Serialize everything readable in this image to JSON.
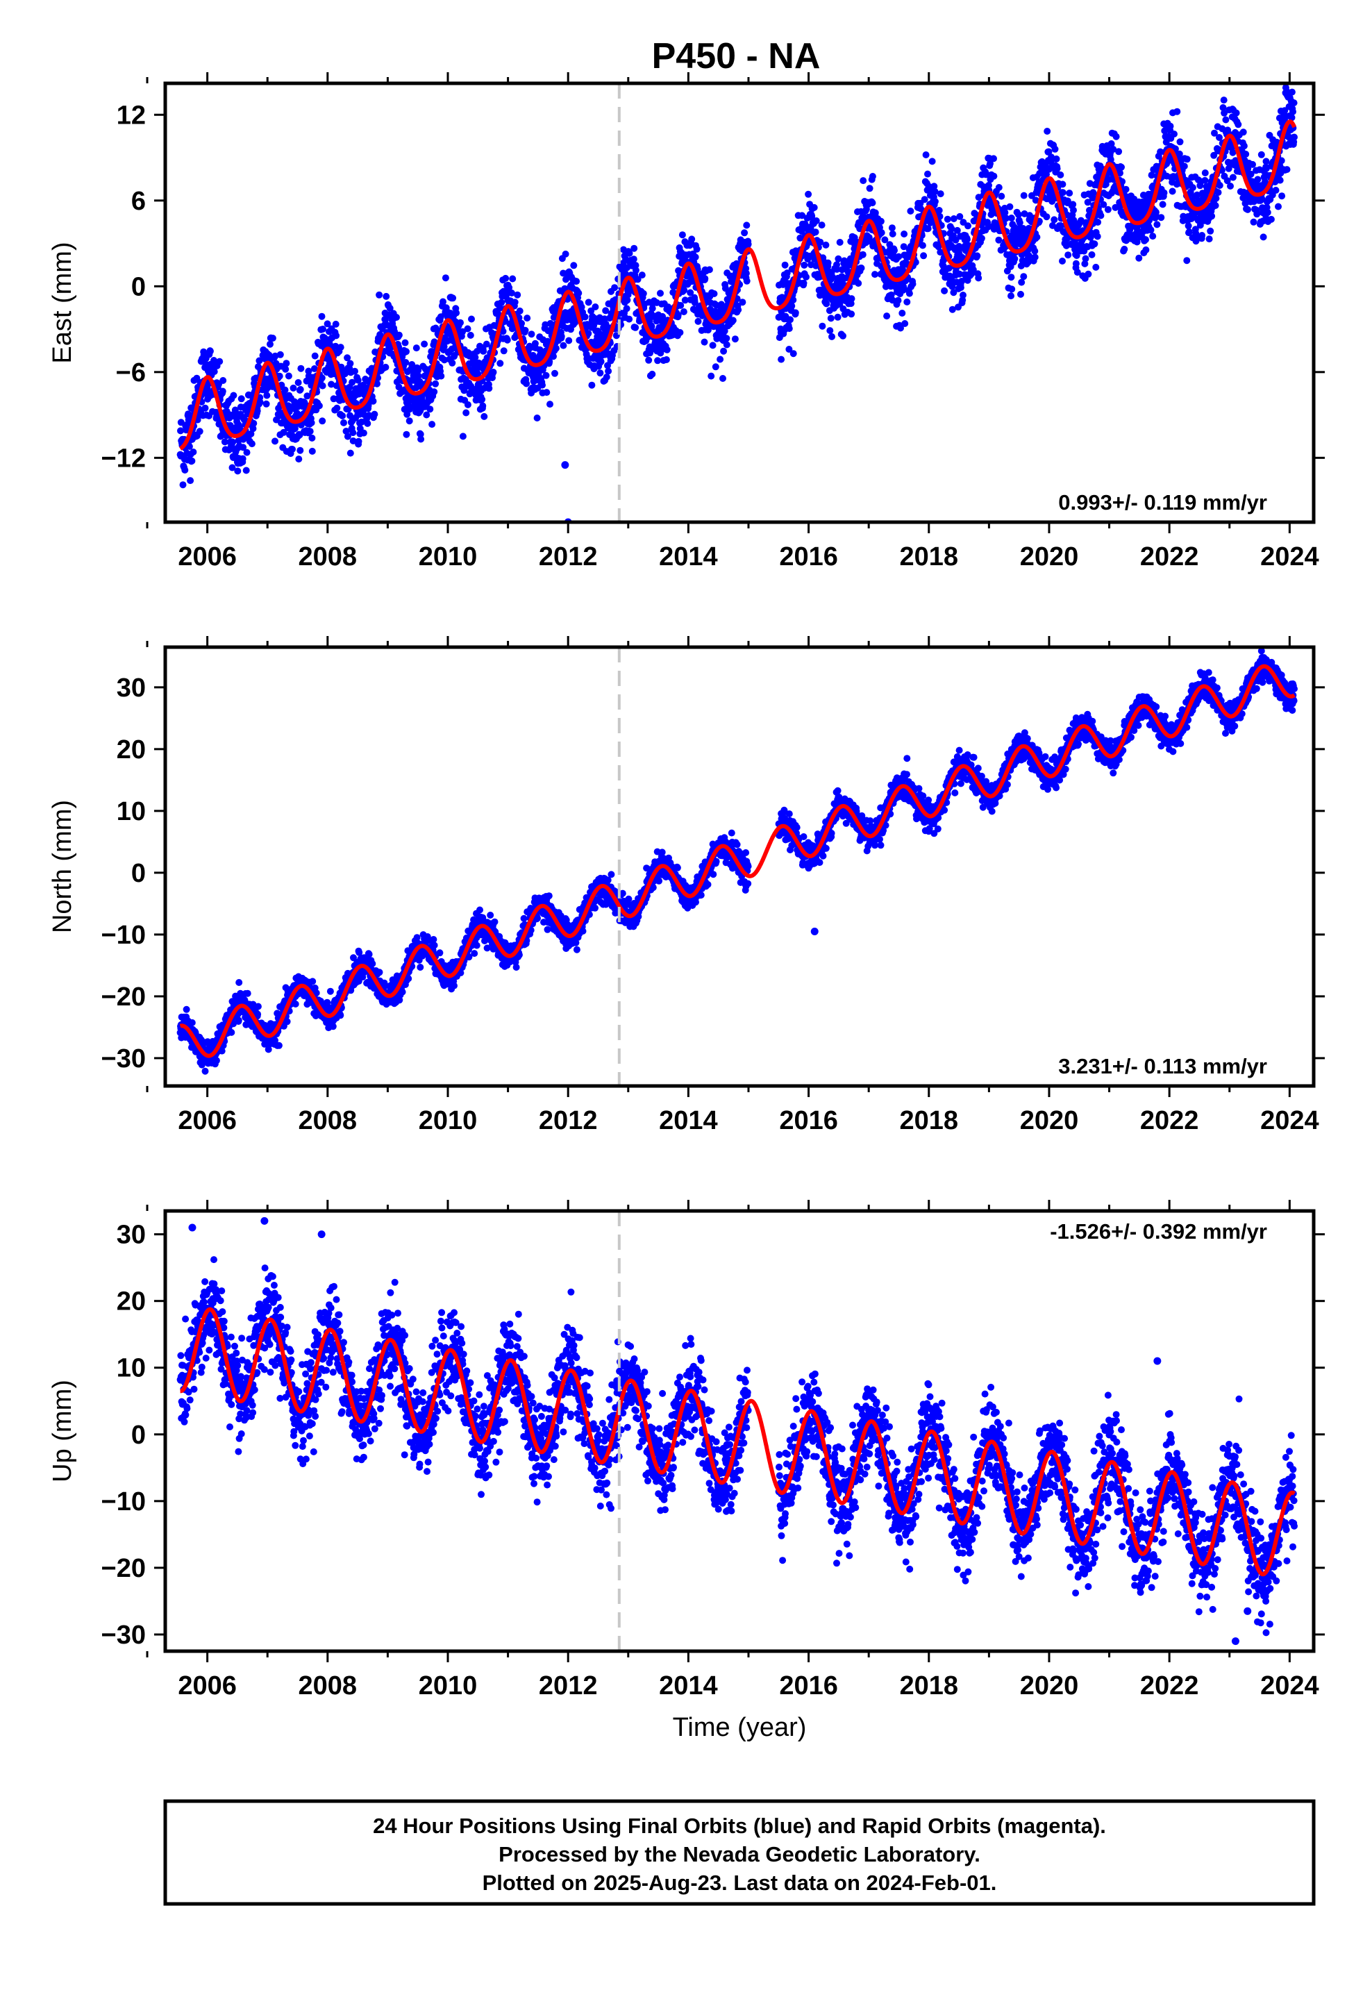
{
  "page": {
    "title": "P450 - NA",
    "footer_lines": [
      "24 Hour Positions Using Final Orbits (blue) and Rapid Orbits (magenta).",
      "Processed by the Nevada Geodetic Laboratory.",
      "Plotted on 2025-Aug-23. Last data on 2024-Feb-01."
    ],
    "colors": {
      "data_points": "#0000ff",
      "model_fit": "#ff0000",
      "event_line": "#c8c8c8",
      "frame": "#000000"
    }
  },
  "chart_data": [
    {
      "type": "scatter",
      "ylabel": "East (mm)",
      "xlabel": "",
      "xlim": [
        2005.3,
        2024.4
      ],
      "ylim": [
        -16.5,
        14.2
      ],
      "xticks": [
        2006,
        2008,
        2010,
        2012,
        2014,
        2016,
        2018,
        2020,
        2022,
        2024
      ],
      "yticks": [
        -12,
        -6,
        0,
        6,
        12
      ],
      "event_line_x": 2012.85,
      "rate_label": "0.993+/- 0.119 mm/yr",
      "data_range": [
        2005.55,
        2024.08
      ],
      "data_gap": [
        2015.0,
        2015.5
      ],
      "model": {
        "base": -9.5,
        "rate": 0.993,
        "annual_amp": 2.3,
        "annual_phase": 0.0,
        "semiannual_amp": 0.4,
        "noise_sd": 1.3
      },
      "outliers": [
        [
          2011.95,
          -12.5
        ],
        [
          2012.0,
          -16.5
        ]
      ],
      "grid": false
    },
    {
      "type": "scatter",
      "ylabel": "North (mm)",
      "xlabel": "",
      "xlim": [
        2005.3,
        2024.4
      ],
      "ylim": [
        -34.5,
        36.5
      ],
      "xticks": [
        2006,
        2008,
        2010,
        2012,
        2014,
        2016,
        2018,
        2020,
        2022,
        2024
      ],
      "yticks": [
        -30,
        -20,
        -10,
        0,
        10,
        20,
        30
      ],
      "event_line_x": 2012.85,
      "rate_label": "3.231+/- 0.113 mm/yr",
      "data_range": [
        2005.55,
        2024.08
      ],
      "data_gap": [
        2015.0,
        2015.5
      ],
      "model": {
        "base": -28.0,
        "rate": 3.231,
        "annual_amp": 3.2,
        "annual_phase": 0.55,
        "semiannual_amp": 0.0,
        "noise_sd": 1.1
      },
      "outliers": [
        [
          2016.1,
          -9.5
        ]
      ],
      "grid": false
    },
    {
      "type": "scatter",
      "ylabel": "Up (mm)",
      "xlabel": "Time (year)",
      "xlim": [
        2005.3,
        2024.4
      ],
      "ylim": [
        -32.5,
        33.5
      ],
      "xticks": [
        2006,
        2008,
        2010,
        2012,
        2014,
        2016,
        2018,
        2020,
        2022,
        2024
      ],
      "yticks": [
        -30,
        -20,
        -10,
        0,
        10,
        20,
        30
      ],
      "event_line_x": 2012.85,
      "rate_label": "-1.526+/- 0.392 mm/yr",
      "data_range": [
        2005.55,
        2024.08
      ],
      "data_gap": [
        2015.0,
        2015.5
      ],
      "model": {
        "base": 13.0,
        "rate": -1.526,
        "annual_amp": 6.5,
        "annual_phase": 0.05,
        "semiannual_amp": 0.0,
        "noise_sd": 3.3
      },
      "outliers": [
        [
          2005.75,
          31.0
        ],
        [
          2006.95,
          32.0
        ],
        [
          2007.9,
          30.0
        ],
        [
          2021.8,
          11.0
        ],
        [
          2023.1,
          -31.0
        ],
        [
          2023.3,
          -26.5
        ]
      ],
      "grid": false
    }
  ]
}
